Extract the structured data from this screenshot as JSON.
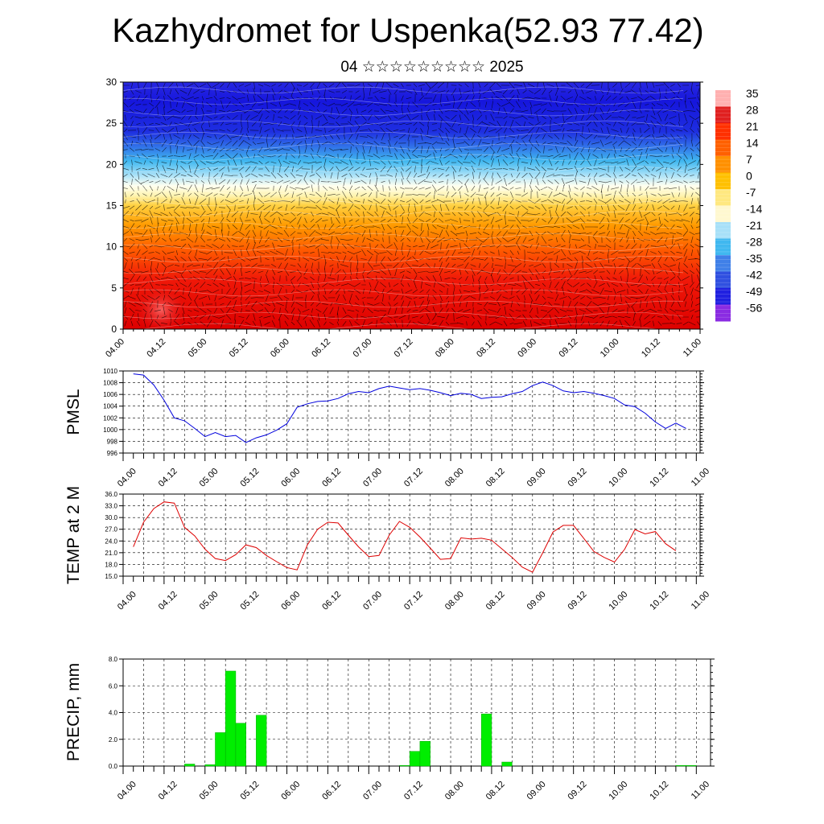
{
  "title": "Kazhydromet for Uspenka(52.93 77.42)",
  "subtitle": "04 ☆☆☆☆☆☆☆☆☆ 2025",
  "colors": {
    "pmsl": "#0000dd",
    "temp": "#dd0000",
    "precip": "#00ee00"
  },
  "chart_data": [
    {
      "type": "heatmap",
      "name": "vertical-section",
      "x_ticks": [
        "04.00",
        "04.12",
        "05.00",
        "05.12",
        "06.00",
        "06.12",
        "07.00",
        "07.12",
        "08.00",
        "08.12",
        "09.00",
        "09.12",
        "10.00",
        "10.12",
        "11.00"
      ],
      "ylim": [
        0,
        30
      ],
      "y_ticks": [
        "0",
        "5",
        "10",
        "15",
        "20",
        "25",
        "30"
      ],
      "colorbar": {
        "labels": [
          "35",
          "28",
          "21",
          "14",
          "7",
          "0",
          "-7",
          "-14",
          "-21",
          "-28",
          "-35",
          "-42",
          "-49",
          "-56"
        ],
        "colors": [
          "#ffb0b0",
          "#e02020",
          "#ff3000",
          "#ff6000",
          "#ff9000",
          "#ffc000",
          "#ffe880",
          "#fff8d0",
          "#a8e0f8",
          "#40b8f0",
          "#4080e8",
          "#3050e0",
          "#2020e0",
          "#8a2be2"
        ]
      }
    },
    {
      "type": "line",
      "name": "pmsl",
      "ylabel": "PMSL",
      "ylim": [
        996,
        1010
      ],
      "y_ticks": [
        "996",
        "998",
        "1000",
        "1002",
        "1004",
        "1006",
        "1008",
        "1010"
      ],
      "x_ticks": [
        "04.00",
        "04.12",
        "05.00",
        "05.12",
        "06.00",
        "06.12",
        "07.00",
        "07.12",
        "08.00",
        "08.12",
        "09.00",
        "09.12",
        "10.00",
        "10.12",
        "11.00"
      ],
      "x": [
        0,
        3,
        6,
        9,
        12,
        15,
        18,
        21,
        24,
        27,
        30,
        33,
        36,
        39,
        42,
        45,
        48,
        51,
        54,
        57,
        60,
        63,
        66,
        69,
        72,
        75,
        78,
        81,
        84,
        87,
        90,
        93,
        96,
        99,
        102,
        105,
        108,
        111,
        114,
        117,
        120,
        123,
        126,
        129,
        132,
        135,
        138,
        141,
        144,
        147,
        150,
        153,
        156,
        159,
        162
      ],
      "values": [
        1009.5,
        1009.3,
        1007.6,
        1005.0,
        1002.0,
        1001.5,
        1000.2,
        998.8,
        999.5,
        998.8,
        999.0,
        997.8,
        998.6,
        999.1,
        999.9,
        1001.0,
        1003.8,
        1004.4,
        1004.8,
        1004.9,
        1005.3,
        1006.1,
        1006.5,
        1006.3,
        1007.0,
        1007.4,
        1007.1,
        1006.8,
        1007.0,
        1006.7,
        1006.3,
        1005.8,
        1006.2,
        1006.0,
        1005.3,
        1005.5,
        1005.6,
        1006.1,
        1006.5,
        1007.5,
        1008.1,
        1007.5,
        1006.6,
        1006.3,
        1006.5,
        1006.2,
        1005.8,
        1005.3,
        1004.2,
        1003.9,
        1002.8,
        1001.3,
        1000.2,
        1001.1,
        1000.2
      ]
    },
    {
      "type": "line",
      "name": "temp",
      "ylabel": "TEMP at 2 M",
      "ylim": [
        15,
        36
      ],
      "y_ticks": [
        "15.0",
        "18.0",
        "21.0",
        "24.0",
        "27.0",
        "30.0",
        "33.0",
        "36.0"
      ],
      "x_ticks": [
        "04.00",
        "04.12",
        "05.00",
        "05.12",
        "06.00",
        "06.12",
        "07.00",
        "07.12",
        "08.00",
        "08.12",
        "09.00",
        "09.12",
        "10.00",
        "10.12",
        "11.00"
      ],
      "x": [
        0,
        3,
        6,
        9,
        12,
        15,
        18,
        21,
        24,
        27,
        30,
        33,
        36,
        39,
        42,
        45,
        48,
        51,
        54,
        57,
        60,
        63,
        66,
        69,
        72,
        75,
        78,
        81,
        84,
        87,
        90,
        93,
        96,
        99,
        102,
        105,
        108,
        111,
        114,
        117,
        120,
        123,
        126,
        129,
        132,
        135,
        138,
        141,
        144,
        147,
        150,
        153,
        156,
        159
      ],
      "values": [
        22.5,
        28.8,
        32.3,
        34.0,
        33.7,
        27.5,
        25.3,
        21.9,
        19.5,
        19.0,
        20.5,
        23.0,
        22.3,
        20.3,
        18.7,
        17.2,
        16.6,
        23.0,
        27.0,
        28.8,
        28.6,
        25.5,
        22.5,
        20.0,
        20.3,
        25.5,
        29.0,
        27.5,
        25.0,
        22.2,
        19.3,
        19.5,
        24.8,
        24.5,
        24.7,
        24.2,
        22.0,
        19.8,
        17.3,
        16.0,
        21.0,
        26.3,
        28.0,
        28.0,
        24.7,
        21.3,
        19.8,
        18.6,
        21.9,
        26.9,
        25.8,
        26.4,
        23.3,
        21.5
      ]
    },
    {
      "type": "bar",
      "name": "precip",
      "ylabel": "PRECIP, mm",
      "ylim": [
        0,
        8
      ],
      "y_ticks": [
        "0.0",
        "2.0",
        "4.0",
        "6.0",
        "8.0"
      ],
      "x_ticks": [
        "04.00",
        "04.12",
        "05.00",
        "05.12",
        "06.00",
        "06.12",
        "07.00",
        "07.12",
        "08.00",
        "08.12",
        "09.00",
        "09.12",
        "10.00",
        "10.12",
        "11.00"
      ],
      "x": [
        15,
        21,
        24,
        27,
        30,
        36,
        78,
        81,
        84,
        102,
        108,
        159,
        162
      ],
      "values": [
        0.15,
        0.1,
        2.5,
        7.1,
        3.2,
        3.8,
        0.05,
        1.1,
        1.85,
        3.9,
        0.3,
        0.05,
        0.05
      ]
    }
  ]
}
